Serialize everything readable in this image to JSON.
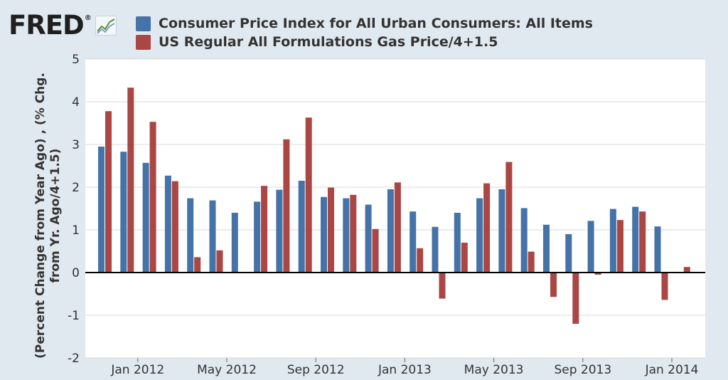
{
  "header": {
    "logo_text": "FRED",
    "logo_mark": "®",
    "logo_icon": "line-chart-icon"
  },
  "colors": {
    "background": "#e1e9f0",
    "plot_background": "#ffffff",
    "series_1": "#4572a7",
    "series_2": "#aa4643",
    "grid": "#d8d8d8",
    "zero_line": "#000000"
  },
  "chart_data": {
    "type": "bar",
    "title": "",
    "xlabel": "",
    "ylabel_lines": [
      "(Percent Change from Year Ago) , (% Chg.",
      "from Yr. Ago/4+1.5)"
    ],
    "ylim": [
      -2,
      5
    ],
    "yticks": [
      -2,
      -1,
      0,
      1,
      2,
      3,
      4,
      5
    ],
    "grid": true,
    "legend_position": "top",
    "categories": [
      "Dec 2011",
      "Jan 2012",
      "Feb 2012",
      "Mar 2012",
      "Apr 2012",
      "May 2012",
      "Jun 2012",
      "Jul 2012",
      "Aug 2012",
      "Sep 2012",
      "Oct 2012",
      "Nov 2012",
      "Dec 2012",
      "Jan 2013",
      "Feb 2013",
      "Mar 2013",
      "Apr 2013",
      "May 2013",
      "Jun 2013",
      "Jul 2013",
      "Aug 2013",
      "Sep 2013",
      "Oct 2013",
      "Nov 2013",
      "Dec 2013",
      "Jan 2014",
      "Feb 2014",
      "Mar 2014"
    ],
    "x_tick_labels": [
      {
        "index": 1,
        "label": "Jan 2012"
      },
      {
        "index": 5,
        "label": "May 2012"
      },
      {
        "index": 9,
        "label": "Sep 2012"
      },
      {
        "index": 13,
        "label": "Jan 2013"
      },
      {
        "index": 17,
        "label": "May 2013"
      },
      {
        "index": 21,
        "label": "Sep 2013"
      },
      {
        "index": 25,
        "label": "Jan 2014"
      }
    ],
    "series": [
      {
        "name": "Consumer Price Index for All Urban Consumers: All Items",
        "values": [
          2.95,
          2.83,
          2.57,
          2.27,
          1.74,
          1.69,
          1.4,
          1.66,
          1.94,
          2.15,
          1.77,
          1.74,
          1.59,
          1.95,
          1.43,
          1.07,
          1.4,
          1.74,
          1.95,
          1.51,
          1.12,
          0.9,
          1.21,
          1.49,
          1.54,
          1.08,
          null,
          null
        ]
      },
      {
        "name": "US Regular All Formulations Gas Price/4+1.5",
        "values": [
          3.78,
          4.33,
          3.53,
          2.14,
          0.36,
          0.52,
          null,
          2.03,
          3.12,
          3.63,
          1.99,
          1.82,
          1.02,
          2.11,
          0.57,
          -0.61,
          0.7,
          2.09,
          2.59,
          0.49,
          -0.57,
          -1.2,
          -0.05,
          1.23,
          1.43,
          -0.64,
          0.13,
          null
        ]
      }
    ]
  }
}
